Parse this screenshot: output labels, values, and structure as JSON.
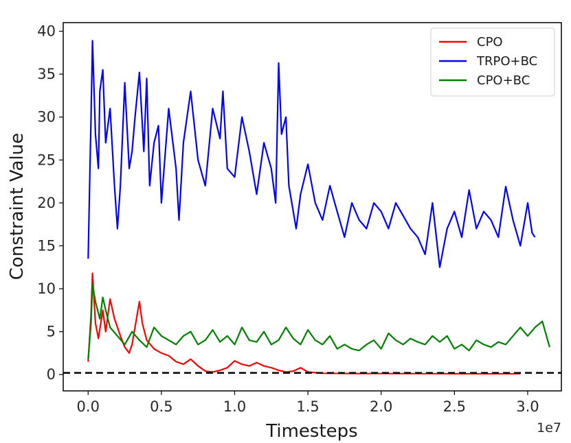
{
  "chart_data": {
    "type": "line",
    "xlabel": "Timesteps",
    "ylabel": "Constraint Value",
    "x_offset_label": "1e7",
    "xlim": [
      -0.17,
      3.23
    ],
    "ylim": [
      -1.9,
      41.0
    ],
    "xticks": [
      0.0,
      0.5,
      1.0,
      1.5,
      2.0,
      2.5,
      3.0
    ],
    "xtick_labels": [
      "0.0",
      "0.5",
      "1.0",
      "1.5",
      "2.0",
      "2.5",
      "3.0"
    ],
    "yticks": [
      0,
      5,
      10,
      15,
      20,
      25,
      30,
      35,
      40
    ],
    "ytick_labels": [
      "0",
      "5",
      "10",
      "15",
      "20",
      "25",
      "30",
      "35",
      "40"
    ],
    "grid": false,
    "legend_position": "top-right",
    "threshold": {
      "y": 0.2,
      "style": "dashed",
      "color": "#000000"
    },
    "series": [
      {
        "name": "CPO",
        "color": "#ff0000",
        "points": [
          [
            0.0,
            1.5
          ],
          [
            0.02,
            7.0
          ],
          [
            0.03,
            11.8
          ],
          [
            0.05,
            6.0
          ],
          [
            0.07,
            4.2
          ],
          [
            0.1,
            7.5
          ],
          [
            0.12,
            5.0
          ],
          [
            0.15,
            8.8
          ],
          [
            0.18,
            6.5
          ],
          [
            0.2,
            5.5
          ],
          [
            0.22,
            4.5
          ],
          [
            0.25,
            3.2
          ],
          [
            0.28,
            2.5
          ],
          [
            0.3,
            3.5
          ],
          [
            0.33,
            6.5
          ],
          [
            0.35,
            8.5
          ],
          [
            0.37,
            6.0
          ],
          [
            0.4,
            4.0
          ],
          [
            0.45,
            3.0
          ],
          [
            0.5,
            2.5
          ],
          [
            0.55,
            2.2
          ],
          [
            0.6,
            1.5
          ],
          [
            0.65,
            1.2
          ],
          [
            0.7,
            1.8
          ],
          [
            0.75,
            1.0
          ],
          [
            0.8,
            0.4
          ],
          [
            0.85,
            0.3
          ],
          [
            0.9,
            0.5
          ],
          [
            0.95,
            0.8
          ],
          [
            1.0,
            1.6
          ],
          [
            1.05,
            1.2
          ],
          [
            1.1,
            1.0
          ],
          [
            1.15,
            1.4
          ],
          [
            1.2,
            1.0
          ],
          [
            1.25,
            0.8
          ],
          [
            1.3,
            0.5
          ],
          [
            1.35,
            0.3
          ],
          [
            1.4,
            0.4
          ],
          [
            1.45,
            0.8
          ],
          [
            1.5,
            0.3
          ],
          [
            1.6,
            0.15
          ],
          [
            1.8,
            0.12
          ],
          [
            2.0,
            0.12
          ],
          [
            2.5,
            0.1
          ],
          [
            2.95,
            0.1
          ]
        ]
      },
      {
        "name": "TRPO+BC",
        "color": "#0000ff",
        "points": [
          [
            0.0,
            13.5
          ],
          [
            0.01,
            22.0
          ],
          [
            0.02,
            30.0
          ],
          [
            0.03,
            38.9
          ],
          [
            0.05,
            28.0
          ],
          [
            0.07,
            24.0
          ],
          [
            0.08,
            33.0
          ],
          [
            0.1,
            35.5
          ],
          [
            0.12,
            27.0
          ],
          [
            0.15,
            31.0
          ],
          [
            0.18,
            22.0
          ],
          [
            0.2,
            17.0
          ],
          [
            0.22,
            22.0
          ],
          [
            0.25,
            34.0
          ],
          [
            0.28,
            24.0
          ],
          [
            0.3,
            26.0
          ],
          [
            0.32,
            30.0
          ],
          [
            0.35,
            35.2
          ],
          [
            0.38,
            26.0
          ],
          [
            0.4,
            34.5
          ],
          [
            0.42,
            22.0
          ],
          [
            0.45,
            27.0
          ],
          [
            0.48,
            29.0
          ],
          [
            0.5,
            20.0
          ],
          [
            0.55,
            31.0
          ],
          [
            0.6,
            24.0
          ],
          [
            0.62,
            18.0
          ],
          [
            0.65,
            27.0
          ],
          [
            0.7,
            33.0
          ],
          [
            0.75,
            25.0
          ],
          [
            0.8,
            22.0
          ],
          [
            0.85,
            31.0
          ],
          [
            0.9,
            27.5
          ],
          [
            0.92,
            33.0
          ],
          [
            0.95,
            24.0
          ],
          [
            1.0,
            23.0
          ],
          [
            1.05,
            30.0
          ],
          [
            1.1,
            26.0
          ],
          [
            1.15,
            21.0
          ],
          [
            1.2,
            27.0
          ],
          [
            1.25,
            24.0
          ],
          [
            1.28,
            20.0
          ],
          [
            1.3,
            36.3
          ],
          [
            1.32,
            28.0
          ],
          [
            1.35,
            30.0
          ],
          [
            1.37,
            22.0
          ],
          [
            1.4,
            19.0
          ],
          [
            1.42,
            17.0
          ],
          [
            1.45,
            21.0
          ],
          [
            1.5,
            24.5
          ],
          [
            1.55,
            20.0
          ],
          [
            1.6,
            18.0
          ],
          [
            1.65,
            22.0
          ],
          [
            1.7,
            19.0
          ],
          [
            1.75,
            16.0
          ],
          [
            1.8,
            20.0
          ],
          [
            1.85,
            18.0
          ],
          [
            1.9,
            17.0
          ],
          [
            1.95,
            20.0
          ],
          [
            2.0,
            19.0
          ],
          [
            2.05,
            17.0
          ],
          [
            2.1,
            20.0
          ],
          [
            2.15,
            18.5
          ],
          [
            2.2,
            17.0
          ],
          [
            2.25,
            16.0
          ],
          [
            2.3,
            14.0
          ],
          [
            2.35,
            20.0
          ],
          [
            2.4,
            12.5
          ],
          [
            2.45,
            17.0
          ],
          [
            2.5,
            19.0
          ],
          [
            2.55,
            16.0
          ],
          [
            2.6,
            21.5
          ],
          [
            2.65,
            17.0
          ],
          [
            2.7,
            19.0
          ],
          [
            2.75,
            18.0
          ],
          [
            2.8,
            16.0
          ],
          [
            2.85,
            21.9
          ],
          [
            2.9,
            18.0
          ],
          [
            2.95,
            15.0
          ],
          [
            3.0,
            20.0
          ],
          [
            3.03,
            16.5
          ],
          [
            3.05,
            16.0
          ]
        ]
      },
      {
        "name": "CPO+BC",
        "color": "#008000",
        "points": [
          [
            0.0,
            1.8
          ],
          [
            0.02,
            6.0
          ],
          [
            0.03,
            10.5
          ],
          [
            0.05,
            8.5
          ],
          [
            0.08,
            6.5
          ],
          [
            0.1,
            9.0
          ],
          [
            0.12,
            7.5
          ],
          [
            0.15,
            5.5
          ],
          [
            0.2,
            4.5
          ],
          [
            0.25,
            3.5
          ],
          [
            0.3,
            5.0
          ],
          [
            0.35,
            4.0
          ],
          [
            0.4,
            3.2
          ],
          [
            0.45,
            5.5
          ],
          [
            0.5,
            4.5
          ],
          [
            0.55,
            4.0
          ],
          [
            0.6,
            3.5
          ],
          [
            0.65,
            4.5
          ],
          [
            0.7,
            5.0
          ],
          [
            0.75,
            3.5
          ],
          [
            0.8,
            4.0
          ],
          [
            0.85,
            5.2
          ],
          [
            0.9,
            3.8
          ],
          [
            0.95,
            4.5
          ],
          [
            1.0,
            3.5
          ],
          [
            1.05,
            5.5
          ],
          [
            1.1,
            4.0
          ],
          [
            1.15,
            3.8
          ],
          [
            1.2,
            5.0
          ],
          [
            1.25,
            3.5
          ],
          [
            1.3,
            4.0
          ],
          [
            1.35,
            5.5
          ],
          [
            1.4,
            4.2
          ],
          [
            1.45,
            3.5
          ],
          [
            1.5,
            5.2
          ],
          [
            1.55,
            4.0
          ],
          [
            1.6,
            3.5
          ],
          [
            1.65,
            4.5
          ],
          [
            1.7,
            3.0
          ],
          [
            1.75,
            3.5
          ],
          [
            1.8,
            3.0
          ],
          [
            1.85,
            2.8
          ],
          [
            1.9,
            3.5
          ],
          [
            1.95,
            4.0
          ],
          [
            2.0,
            3.0
          ],
          [
            2.05,
            4.8
          ],
          [
            2.1,
            4.0
          ],
          [
            2.15,
            3.5
          ],
          [
            2.2,
            4.2
          ],
          [
            2.25,
            3.8
          ],
          [
            2.3,
            3.5
          ],
          [
            2.35,
            4.5
          ],
          [
            2.4,
            3.8
          ],
          [
            2.45,
            4.5
          ],
          [
            2.5,
            3.0
          ],
          [
            2.55,
            3.5
          ],
          [
            2.6,
            2.8
          ],
          [
            2.65,
            4.0
          ],
          [
            2.7,
            3.5
          ],
          [
            2.75,
            3.2
          ],
          [
            2.8,
            3.8
          ],
          [
            2.85,
            3.5
          ],
          [
            2.9,
            4.5
          ],
          [
            2.95,
            5.5
          ],
          [
            3.0,
            4.5
          ],
          [
            3.05,
            5.5
          ],
          [
            3.1,
            6.2
          ],
          [
            3.12,
            5.0
          ],
          [
            3.15,
            3.2
          ]
        ]
      }
    ]
  }
}
